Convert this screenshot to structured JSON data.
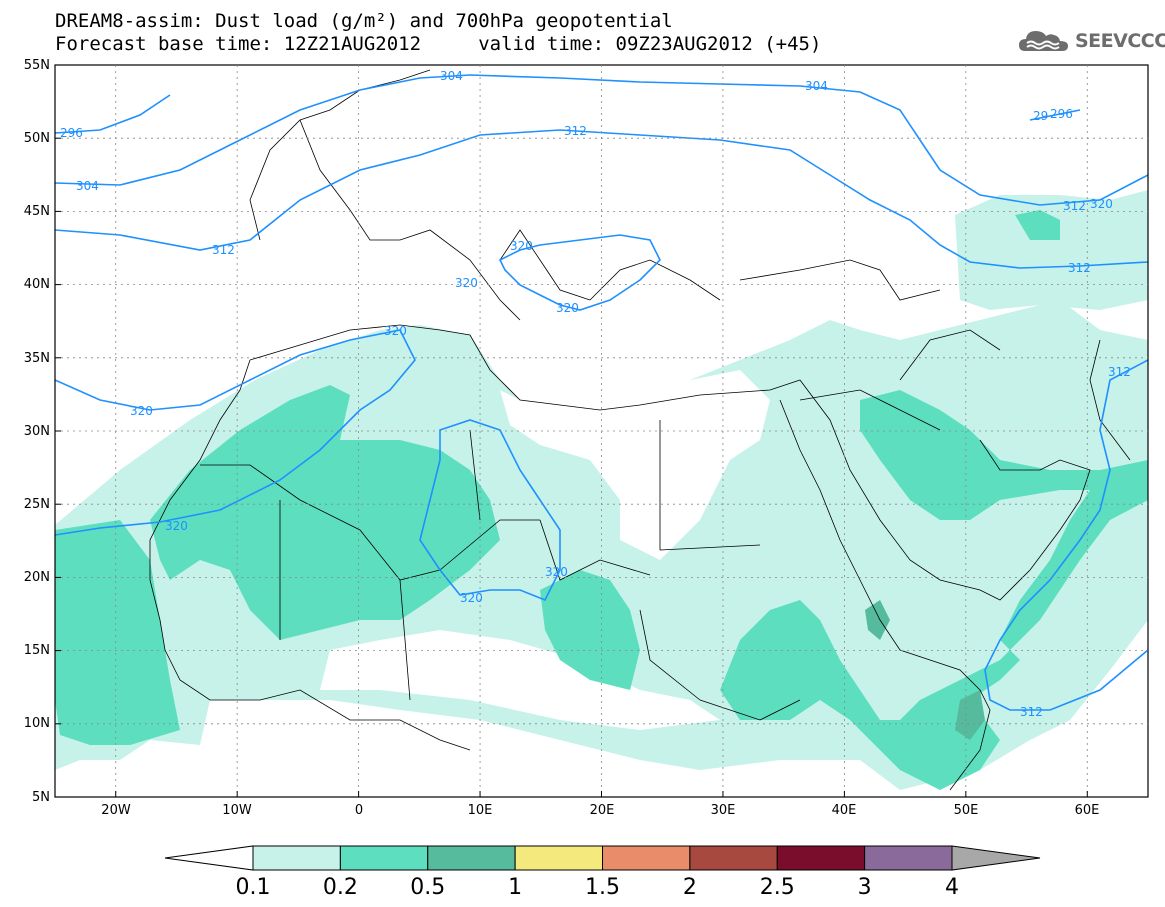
{
  "title": {
    "line1": "DREAM8-assim: Dust load (g/m²) and 700hPa geopotential",
    "line2": "Forecast base time: 12Z21AUG2012     valid time: 09Z23AUG2012 (+45)"
  },
  "logo": {
    "text": "SEEVCCC",
    "icon": "cloud-icon",
    "color": "#6d6d6d"
  },
  "map": {
    "extent": {
      "lon": [
        -25,
        65
      ],
      "lat": [
        5,
        55
      ]
    },
    "lat_labels": [
      "55N",
      "50N",
      "45N",
      "40N",
      "35N",
      "30N",
      "25N",
      "20N",
      "15N",
      "10N",
      "5N"
    ],
    "lon_labels": [
      "20W",
      "10W",
      "0",
      "10E",
      "20E",
      "30E",
      "40E",
      "50E",
      "60E"
    ],
    "contour_color": "#1e90ff",
    "contour_labels": [
      "304",
      "304",
      "296",
      "312",
      "304",
      "29",
      "296",
      "312",
      "320",
      "320",
      "320",
      "312",
      "320",
      "312",
      "320",
      "320",
      "320",
      "320",
      "320",
      "312",
      "312"
    ]
  },
  "legend": {
    "colors": [
      "#c6f2ea",
      "#5ddfbf",
      "#56bb9c",
      "#f3e97c",
      "#e98c69",
      "#a8493f",
      "#7a0d2c",
      "#8a6a9a",
      "#a8a8a8"
    ],
    "labels": [
      "0.1",
      "0.2",
      "0.5",
      "1",
      "1.5",
      "2",
      "2.5",
      "3",
      "4"
    ]
  }
}
